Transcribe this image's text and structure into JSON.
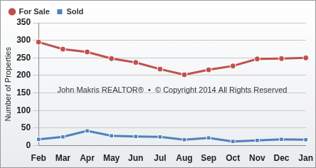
{
  "chart_data": {
    "type": "line",
    "y_label": "Number of Properties",
    "categories": [
      "Feb",
      "Mar",
      "Apr",
      "May",
      "Jun",
      "Jul",
      "Aug",
      "Sep",
      "Oct",
      "Nov",
      "Dec",
      "Jan"
    ],
    "series": [
      {
        "name": "For Sale",
        "color": "#c0504d",
        "marker": "circle",
        "line_style": "solid",
        "values": [
          295,
          275,
          267,
          248,
          237,
          218,
          202,
          216,
          227,
          247,
          248,
          250
        ]
      },
      {
        "name": "Sold",
        "color": "#4f81bd",
        "marker": "square",
        "line_style": "solid",
        "values": [
          18,
          25,
          42,
          28,
          26,
          25,
          17,
          22,
          12,
          15,
          18,
          17
        ]
      }
    ],
    "ylim": [
      0,
      350
    ],
    "yticks": [
      0,
      50,
      100,
      150,
      200,
      250,
      300,
      350
    ],
    "grid": true,
    "legend": "top-left",
    "annotations": [
      "John Makris REALTOR®  •  © Copyright 2014 All Rights Reserved"
    ]
  }
}
